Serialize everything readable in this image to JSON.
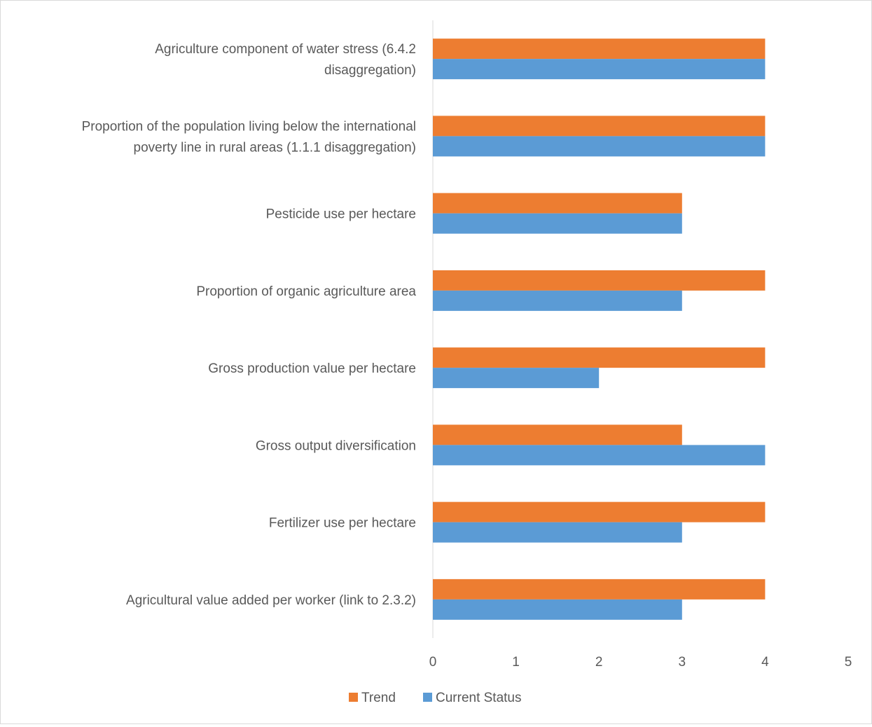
{
  "chart_data": {
    "type": "bar",
    "orientation": "horizontal",
    "title": "",
    "xlabel": "",
    "ylabel": "",
    "xlim": [
      0,
      5
    ],
    "x_ticks": [
      "0",
      "1",
      "2",
      "3",
      "4",
      "5"
    ],
    "grid": false,
    "legend_position": "bottom",
    "categories": [
      [
        "Agriculture component of water stress (6.4.2",
        "disaggregation)"
      ],
      [
        "Proportion of the population living below the international",
        "poverty line in rural areas (1.1.1 disaggregation)"
      ],
      [
        "Pesticide use per hectare"
      ],
      [
        "Proportion of organic agriculture area"
      ],
      [
        "Gross production value per hectare"
      ],
      [
        "Gross output diversification"
      ],
      [
        "Fertilizer use per hectare"
      ],
      [
        "Agricultural value added per worker (link to 2.3.2)"
      ]
    ],
    "series": [
      {
        "name": "Trend",
        "color": "#ed7d31",
        "values": [
          4,
          4,
          3,
          4,
          4,
          3,
          4,
          4
        ]
      },
      {
        "name": "Current Status",
        "color": "#5b9bd5",
        "values": [
          4,
          4,
          3,
          3,
          2,
          4,
          3,
          3
        ]
      }
    ]
  }
}
